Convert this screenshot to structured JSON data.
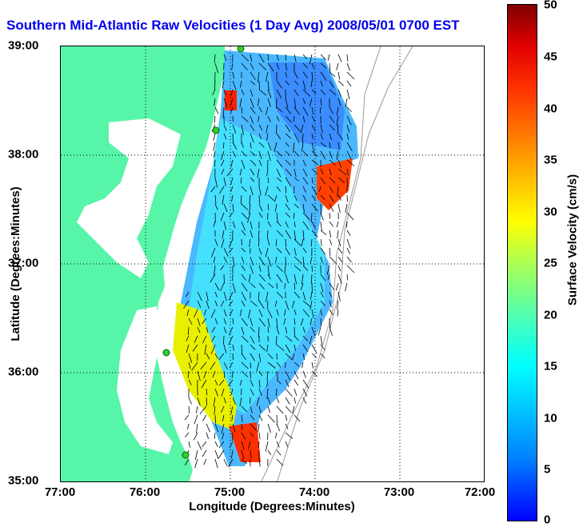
{
  "title": "Southern Mid-Atlantic Raw Velocities (1 Day Avg) 2008/05/01 0700 EST",
  "x_axis": {
    "label": "Longitude (Degrees:Minutes)",
    "ticks": [
      "77:00",
      "76:00",
      "75:00",
      "74:00",
      "73:00",
      "72:00"
    ]
  },
  "y_axis": {
    "label": "Latitude (Degrees:Minutes)",
    "ticks": [
      "39:00",
      "38:00",
      "37:00",
      "36:00",
      "35:00"
    ]
  },
  "colorbar": {
    "label": "Surface Velocity (cm/s)",
    "ticks": [
      "50",
      "45",
      "40",
      "35",
      "30",
      "25",
      "20",
      "15",
      "10",
      "5",
      "0"
    ],
    "range": [
      0,
      50
    ]
  },
  "colors": {
    "land": "#57f5a8",
    "title": "#0000ee",
    "grid": "#000000"
  }
}
